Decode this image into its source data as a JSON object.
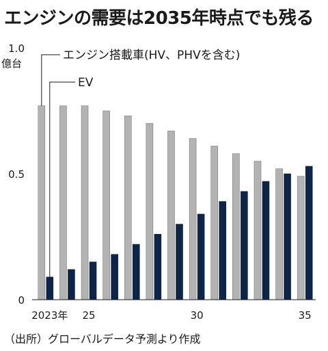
{
  "title": "エンジンの需要は2035年時点でも残る",
  "source": "（出所）グローバルデータ予測より作成",
  "chart_data": {
    "type": "bar",
    "x": [
      2023,
      2024,
      2025,
      2026,
      2027,
      2028,
      2029,
      2030,
      2031,
      2032,
      2033,
      2034,
      2035
    ],
    "x_tick_labels": [
      "2023年",
      "25",
      "30",
      "35"
    ],
    "x_tick_values": [
      2023,
      2025,
      2030,
      2035
    ],
    "y_tick_labels": [
      "1.0",
      "0.5",
      "0"
    ],
    "y_tick_values": [
      1.0,
      0.5,
      0
    ],
    "y_unit": "億台",
    "ylim": [
      0,
      1.0
    ],
    "grid": false,
    "series": [
      {
        "name": "エンジン搭載車(HV、PHVを含む)",
        "color": "#b3b3b3",
        "values": [
          0.77,
          0.77,
          0.77,
          0.75,
          0.73,
          0.7,
          0.67,
          0.64,
          0.61,
          0.58,
          0.55,
          0.52,
          0.49
        ]
      },
      {
        "name": "EV",
        "color": "#0c2548",
        "values": [
          0.09,
          0.12,
          0.15,
          0.18,
          0.22,
          0.26,
          0.3,
          0.34,
          0.39,
          0.43,
          0.47,
          0.5,
          0.53
        ]
      }
    ]
  }
}
